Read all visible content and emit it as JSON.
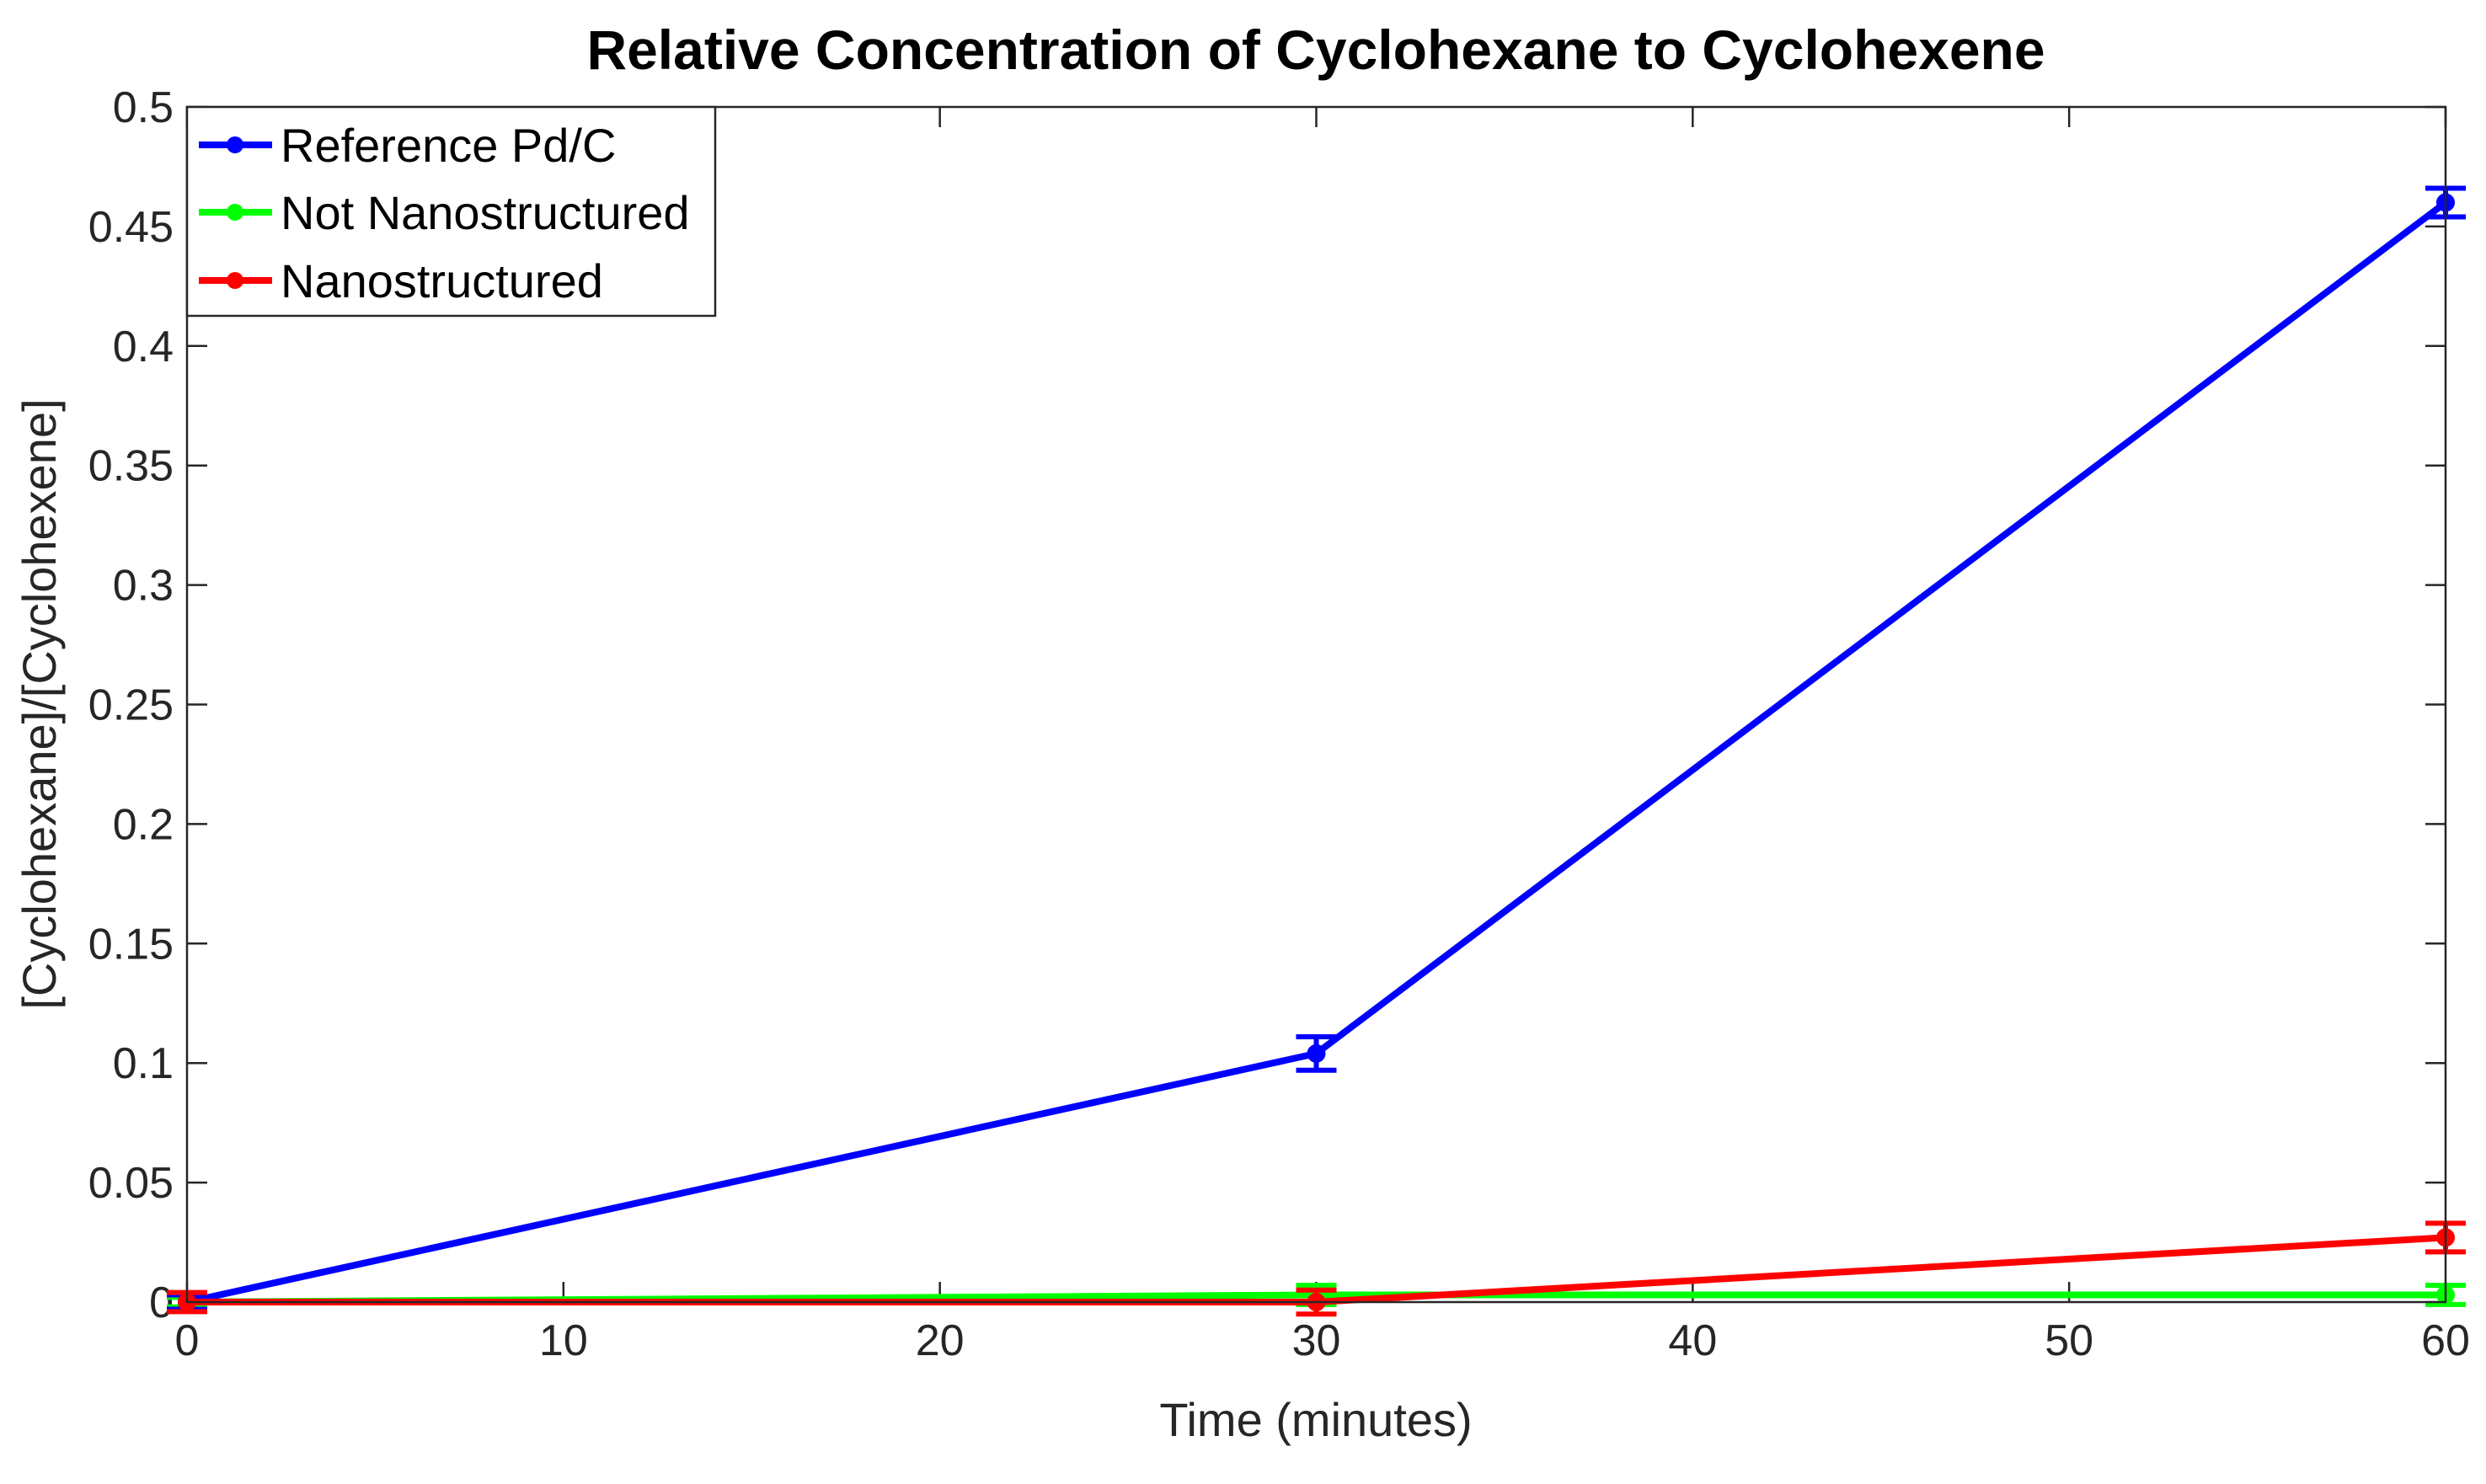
{
  "chart_data": {
    "type": "line",
    "title": "Relative Concentration of Cyclohexane to Cyclohexene",
    "xlabel": "Time (minutes)",
    "ylabel": "[Cyclohexane]/[Cyclohexene]",
    "xlim": [
      0,
      60
    ],
    "ylim": [
      0,
      0.5
    ],
    "x_ticks": [
      0,
      10,
      20,
      30,
      40,
      50,
      60
    ],
    "x_tick_labels": [
      "0",
      "10",
      "20",
      "30",
      "40",
      "50",
      "60"
    ],
    "y_ticks": [
      0,
      0.05,
      0.1,
      0.15,
      0.2,
      0.25,
      0.3,
      0.35,
      0.4,
      0.45,
      0.5
    ],
    "y_tick_labels": [
      "0",
      "0.05",
      "0.1",
      "0.15",
      "0.2",
      "0.25",
      "0.3",
      "0.35",
      "0.4",
      "0.45",
      "0.5"
    ],
    "grid": false,
    "legend_position": "top-left",
    "x": [
      0,
      30,
      60
    ],
    "series": [
      {
        "name": "Reference Pd/C",
        "color": "#0000ff",
        "values": [
          0,
          0.104,
          0.46
        ],
        "errors": [
          0.003,
          0.007,
          0.006
        ]
      },
      {
        "name": "Not Nanostructured",
        "color": "#00ff00",
        "values": [
          0,
          0.003,
          0.003
        ],
        "errors": [
          0.002,
          0.004,
          0.004
        ]
      },
      {
        "name": "Nanostructured",
        "color": "#ff0000",
        "values": [
          0,
          0,
          0.027
        ],
        "errors": [
          0.004,
          0.005,
          0.006
        ]
      }
    ]
  }
}
